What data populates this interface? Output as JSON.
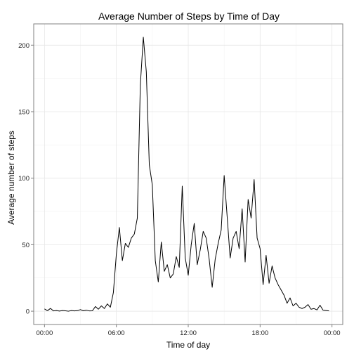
{
  "chart_data": {
    "type": "line",
    "title": "Average Number of Steps by Time of Day",
    "xlabel": "Time of day",
    "ylabel": "Average number of steps",
    "x_unit": "hour of day",
    "xlim": [
      -0.9,
      24.9
    ],
    "ylim": [
      -10,
      216
    ],
    "x_ticks": [
      {
        "value": 0,
        "label": "00:00"
      },
      {
        "value": 6,
        "label": "06:00"
      },
      {
        "value": 12,
        "label": "12:00"
      },
      {
        "value": 18,
        "label": "18:00"
      },
      {
        "value": 24,
        "label": "00:00"
      }
    ],
    "y_ticks": [
      {
        "value": 0,
        "label": "0"
      },
      {
        "value": 50,
        "label": "50"
      },
      {
        "value": 100,
        "label": "100"
      },
      {
        "value": 150,
        "label": "150"
      },
      {
        "value": 200,
        "label": "200"
      }
    ],
    "grid": true,
    "line_color": "#000000",
    "series": [
      {
        "x": [
          0,
          0.25,
          0.5,
          0.75,
          1,
          1.25,
          1.5,
          1.75,
          2,
          2.25,
          2.5,
          2.75,
          3,
          3.25,
          3.5,
          3.75,
          4,
          4.25,
          4.5,
          4.75,
          5,
          5.25,
          5.5,
          5.75,
          6,
          6.25,
          6.5,
          6.75,
          7,
          7.25,
          7.5,
          7.75,
          8,
          8.25,
          8.5,
          8.75,
          9,
          9.25,
          9.5,
          9.75,
          10,
          10.25,
          10.5,
          10.75,
          11,
          11.25,
          11.5,
          11.75,
          12,
          12.25,
          12.5,
          12.75,
          13,
          13.25,
          13.5,
          13.75,
          14,
          14.25,
          14.5,
          14.75,
          15,
          15.25,
          15.5,
          15.75,
          16,
          16.25,
          16.5,
          16.75,
          17,
          17.25,
          17.5,
          17.75,
          18,
          18.25,
          18.5,
          18.75,
          19,
          19.25,
          19.5,
          19.75,
          20,
          20.25,
          20.5,
          20.75,
          21,
          21.25,
          21.5,
          21.75,
          22,
          22.25,
          22.5,
          22.75,
          23,
          23.25,
          23.5,
          23.75
        ],
        "values": [
          1.7,
          0.4,
          2.1,
          0.2,
          0.5,
          0.1,
          0.5,
          0.3,
          0,
          0.5,
          0.2,
          0.4,
          1.2,
          0.3,
          0.8,
          0.2,
          0.3,
          3.5,
          1.5,
          4.0,
          2.0,
          5.5,
          3.0,
          14.0,
          43.0,
          63.0,
          38.0,
          51.0,
          48.0,
          55.0,
          58.0,
          70.0,
          170.0,
          206.0,
          180.0,
          110.0,
          95.0,
          38.0,
          22.0,
          52.0,
          30.0,
          35.0,
          25.0,
          28.0,
          41.0,
          33.0,
          94.0,
          40.0,
          27.0,
          50.0,
          66.0,
          35.0,
          46.0,
          60.0,
          55.0,
          39.0,
          18.0,
          39.0,
          51.0,
          61.0,
          102.0,
          71.0,
          40.0,
          55.0,
          60.0,
          47.0,
          77.0,
          37.0,
          84.0,
          70.0,
          99.0,
          55.0,
          47.0,
          20.0,
          42.0,
          21.0,
          34.0,
          25.0,
          20.0,
          16.0,
          12.0,
          6.0,
          10.0,
          4.0,
          6.0,
          3.0,
          2.0,
          3.0,
          5.0,
          1.5,
          2.0,
          1.0,
          4.5,
          0.8,
          0.5,
          0.2
        ]
      }
    ]
  }
}
